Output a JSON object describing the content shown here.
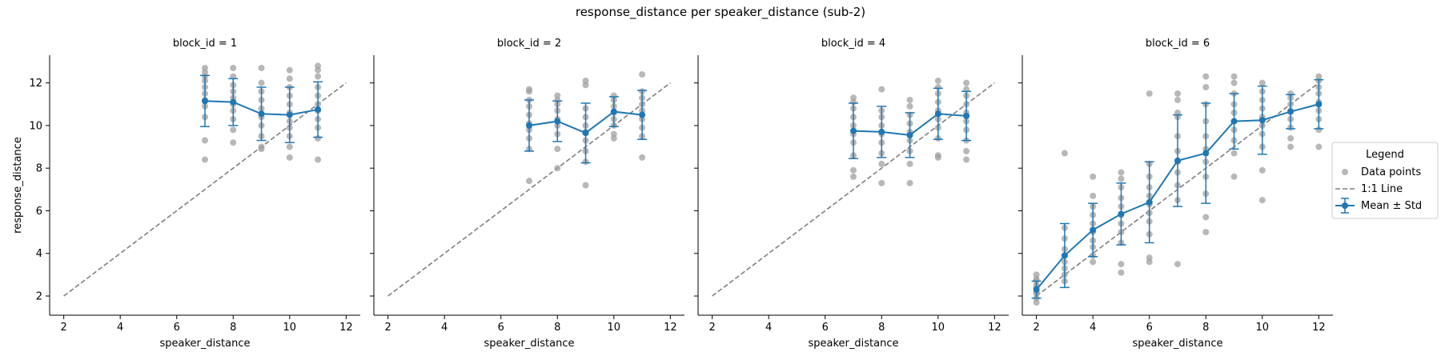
{
  "figure": {
    "title": "response_distance per speaker_distance (sub-2)"
  },
  "legend": {
    "title": "Legend",
    "items": [
      {
        "label": "Data points",
        "kind": "points",
        "color": "#a0a0a0"
      },
      {
        "label": "1:1 Line",
        "kind": "dashed",
        "color": "#808080"
      },
      {
        "label": "Mean ± Std",
        "kind": "errorbar",
        "color": "#1f77b4"
      }
    ]
  },
  "colors": {
    "points": "#a0a0a0",
    "identity_line": "#808080",
    "mean": "#1f77b4",
    "axis": "#000000"
  },
  "chart_data": [
    {
      "type": "scatter",
      "title": "block_id = 1",
      "xlabel": "speaker_distance",
      "ylabel": "response_distance",
      "xlim": [
        1.5,
        12.5
      ],
      "ylim": [
        1.1,
        13.3
      ],
      "xticks": [
        2,
        4,
        6,
        8,
        10,
        12
      ],
      "yticks": [
        2,
        4,
        6,
        8,
        10,
        12
      ],
      "identity_line": [
        [
          2,
          2
        ],
        [
          12,
          12
        ]
      ],
      "points": [
        {
          "x": 7,
          "y": [
            8.4,
            9.3,
            10.4,
            10.9,
            11.2,
            11.5,
            11.8,
            12.1,
            12.3,
            12.5,
            12.7
          ]
        },
        {
          "x": 8,
          "y": [
            9.2,
            9.8,
            10.3,
            10.7,
            11.0,
            11.3,
            11.6,
            11.9,
            12.3,
            12.7
          ]
        },
        {
          "x": 9,
          "y": [
            8.9,
            9.0,
            9.5,
            10.0,
            10.4,
            10.8,
            11.2,
            11.6,
            12.0,
            12.7
          ]
        },
        {
          "x": 10,
          "y": [
            8.5,
            9.0,
            9.5,
            9.9,
            10.2,
            10.6,
            11.0,
            11.4,
            11.8,
            12.2,
            12.6
          ]
        },
        {
          "x": 11,
          "y": [
            8.4,
            9.4,
            9.9,
            10.3,
            10.7,
            11.0,
            11.4,
            11.8,
            12.3,
            12.6,
            12.8
          ]
        }
      ],
      "series": [
        {
          "name": "Mean ± Std",
          "x": [
            7,
            8,
            9,
            10,
            11
          ],
          "mean": [
            11.15,
            11.1,
            10.55,
            10.5,
            10.75
          ],
          "std": [
            1.2,
            1.1,
            1.25,
            1.3,
            1.3
          ]
        }
      ]
    },
    {
      "type": "scatter",
      "title": "block_id = 2",
      "xlabel": "speaker_distance",
      "ylabel": "",
      "xlim": [
        1.5,
        12.5
      ],
      "ylim": [
        1.1,
        13.3
      ],
      "xticks": [
        2,
        4,
        6,
        8,
        10,
        12
      ],
      "yticks": [
        2,
        4,
        6,
        8,
        10,
        12
      ],
      "identity_line": [
        [
          2,
          2
        ],
        [
          12,
          12
        ]
      ],
      "points": [
        {
          "x": 7,
          "y": [
            7.4,
            8.9,
            9.4,
            9.8,
            10.1,
            10.5,
            10.9,
            11.2,
            11.6,
            11.7
          ]
        },
        {
          "x": 8,
          "y": [
            8.0,
            8.9,
            9.6,
            10.0,
            10.3,
            10.7,
            11.0,
            11.2,
            11.4
          ]
        },
        {
          "x": 9,
          "y": [
            7.2,
            8.3,
            8.8,
            9.3,
            9.7,
            10.0,
            10.4,
            10.8,
            11.9,
            12.1
          ]
        },
        {
          "x": 10,
          "y": [
            9.4,
            9.6,
            10.0,
            10.3,
            10.6,
            10.9,
            11.2,
            11.4
          ]
        },
        {
          "x": 11,
          "y": [
            8.5,
            9.5,
            9.9,
            10.3,
            10.7,
            11.0,
            11.3,
            11.6,
            12.4
          ]
        }
      ],
      "series": [
        {
          "name": "Mean ± Std",
          "x": [
            7,
            8,
            9,
            10,
            11
          ],
          "mean": [
            10.0,
            10.2,
            9.65,
            10.65,
            10.5
          ],
          "std": [
            1.2,
            0.95,
            1.4,
            0.7,
            1.15
          ]
        }
      ]
    },
    {
      "type": "scatter",
      "title": "block_id = 4",
      "xlabel": "speaker_distance",
      "ylabel": "",
      "xlim": [
        1.5,
        12.5
      ],
      "ylim": [
        1.1,
        13.3
      ],
      "xticks": [
        2,
        4,
        6,
        8,
        10,
        12
      ],
      "yticks": [
        2,
        4,
        6,
        8,
        10,
        12
      ],
      "identity_line": [
        [
          2,
          2
        ],
        [
          12,
          12
        ]
      ],
      "points": [
        {
          "x": 7,
          "y": [
            7.6,
            7.9,
            8.6,
            9.2,
            9.6,
            10.0,
            10.4,
            10.8,
            11.1,
            11.3
          ]
        },
        {
          "x": 8,
          "y": [
            7.3,
            8.2,
            8.7,
            9.2,
            9.6,
            10.0,
            10.4,
            10.7,
            11.7
          ]
        },
        {
          "x": 9,
          "y": [
            7.3,
            8.2,
            8.8,
            9.3,
            9.7,
            10.1,
            10.5,
            10.9,
            11.2
          ]
        },
        {
          "x": 10,
          "y": [
            8.5,
            8.6,
            9.4,
            9.9,
            10.3,
            10.7,
            11.1,
            11.5,
            11.8,
            12.1
          ]
        },
        {
          "x": 11,
          "y": [
            8.4,
            8.8,
            9.3,
            9.8,
            10.2,
            10.6,
            11.0,
            11.4,
            11.7,
            12.0
          ]
        }
      ],
      "series": [
        {
          "name": "Mean ± Std",
          "x": [
            7,
            8,
            9,
            10,
            11
          ],
          "mean": [
            9.75,
            9.7,
            9.55,
            10.55,
            10.45
          ],
          "std": [
            1.3,
            1.2,
            1.05,
            1.2,
            1.15
          ]
        }
      ]
    },
    {
      "type": "scatter",
      "title": "block_id = 6",
      "xlabel": "speaker_distance",
      "ylabel": "",
      "xlim": [
        1.5,
        12.5
      ],
      "ylim": [
        1.1,
        13.3
      ],
      "xticks": [
        2,
        4,
        6,
        8,
        10,
        12
      ],
      "yticks": [
        2,
        4,
        6,
        8,
        10,
        12
      ],
      "identity_line": [
        [
          2,
          2
        ],
        [
          12,
          12
        ]
      ],
      "points": [
        {
          "x": 2,
          "y": [
            1.7,
            1.9,
            2.1,
            2.2,
            2.4,
            2.5,
            2.7,
            2.8,
            3.0
          ]
        },
        {
          "x": 3,
          "y": [
            2.7,
            3.0,
            3.3,
            3.6,
            3.9,
            4.2,
            4.7,
            5.2,
            8.7
          ]
        },
        {
          "x": 4,
          "y": [
            3.6,
            3.9,
            4.3,
            4.6,
            5.0,
            5.4,
            5.8,
            6.2,
            6.7,
            7.6
          ]
        },
        {
          "x": 5,
          "y": [
            3.1,
            3.5,
            4.5,
            5.0,
            5.4,
            5.8,
            6.2,
            6.6,
            7.1,
            7.5,
            7.8
          ]
        },
        {
          "x": 6,
          "y": [
            3.6,
            3.8,
            4.9,
            5.5,
            5.9,
            6.3,
            6.7,
            7.1,
            7.6,
            8.2,
            11.5
          ]
        },
        {
          "x": 7,
          "y": [
            3.5,
            6.5,
            7.2,
            7.8,
            8.3,
            8.8,
            9.5,
            10.4,
            10.6,
            11.2,
            11.5
          ]
        },
        {
          "x": 8,
          "y": [
            5.0,
            5.7,
            6.8,
            7.6,
            8.3,
            8.9,
            9.5,
            10.2,
            11.0,
            11.8,
            12.3
          ]
        },
        {
          "x": 9,
          "y": [
            7.6,
            8.7,
            9.3,
            9.8,
            10.2,
            10.6,
            11.0,
            11.5,
            12.0,
            12.3
          ]
        },
        {
          "x": 10,
          "y": [
            6.5,
            7.9,
            9.0,
            9.6,
            10.0,
            10.4,
            10.8,
            11.2,
            11.6,
            12.0
          ]
        },
        {
          "x": 11,
          "y": [
            9.0,
            9.4,
            9.9,
            10.3,
            10.7,
            11.0,
            11.3,
            11.5
          ]
        },
        {
          "x": 12,
          "y": [
            9.0,
            9.8,
            10.3,
            10.7,
            11.1,
            11.5,
            11.8,
            12.1,
            12.3
          ]
        }
      ],
      "series": [
        {
          "name": "Mean ± Std",
          "x": [
            2,
            3,
            4,
            5,
            6,
            7,
            8,
            9,
            10,
            11,
            12
          ],
          "mean": [
            2.3,
            3.9,
            5.1,
            5.85,
            6.4,
            8.35,
            8.7,
            10.2,
            10.25,
            10.65,
            11.0
          ],
          "std": [
            0.4,
            1.5,
            1.25,
            1.45,
            1.9,
            2.15,
            2.35,
            1.3,
            1.6,
            0.8,
            1.15
          ]
        }
      ]
    }
  ]
}
